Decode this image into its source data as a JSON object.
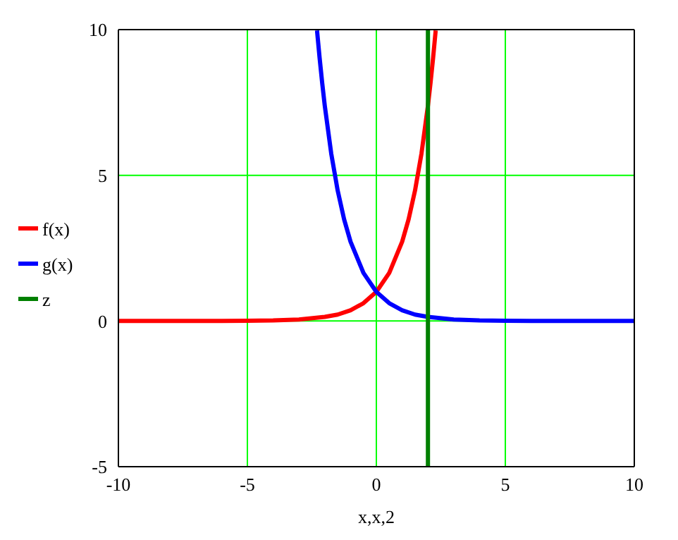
{
  "chart_data": {
    "type": "line",
    "xlabel": "x,x,2",
    "xlim": [
      -10,
      10
    ],
    "xticks": [
      -10,
      -5,
      0,
      5,
      10
    ],
    "ylim": [
      -5,
      10
    ],
    "yticks": [
      -5,
      0,
      5,
      10
    ],
    "grid": true,
    "legend": "left",
    "line_style": "solid",
    "marker": "none",
    "series": [
      {
        "name": "f(x)",
        "color": "#ff0000",
        "x": [
          -10,
          -8,
          -6,
          -5,
          -4,
          -3,
          -2,
          -1.5,
          -1,
          -0.5,
          0,
          0.5,
          1,
          1.25,
          1.5,
          1.75,
          2,
          2.1,
          2.2,
          2.3
        ],
        "values": [
          0,
          0,
          0,
          0.01,
          0.02,
          0.05,
          0.14,
          0.22,
          0.37,
          0.61,
          1,
          1.65,
          2.72,
          3.49,
          4.48,
          5.75,
          7.39,
          8.17,
          9.03,
          9.97
        ]
      },
      {
        "name": "g(x)",
        "color": "#0000ff",
        "x": [
          -2.3,
          -2.2,
          -2.1,
          -2,
          -1.75,
          -1.5,
          -1.25,
          -1,
          -0.5,
          0,
          0.5,
          1,
          1.5,
          2,
          3,
          4,
          5,
          6,
          8,
          10
        ],
        "values": [
          9.97,
          9.03,
          8.17,
          7.39,
          5.75,
          4.48,
          3.49,
          2.72,
          1.65,
          1,
          0.61,
          0.37,
          0.22,
          0.14,
          0.05,
          0.02,
          0.01,
          0,
          0,
          0
        ]
      },
      {
        "name": "z",
        "color": "#008000",
        "x": [
          2,
          2
        ],
        "values": [
          -5,
          10
        ]
      }
    ]
  }
}
